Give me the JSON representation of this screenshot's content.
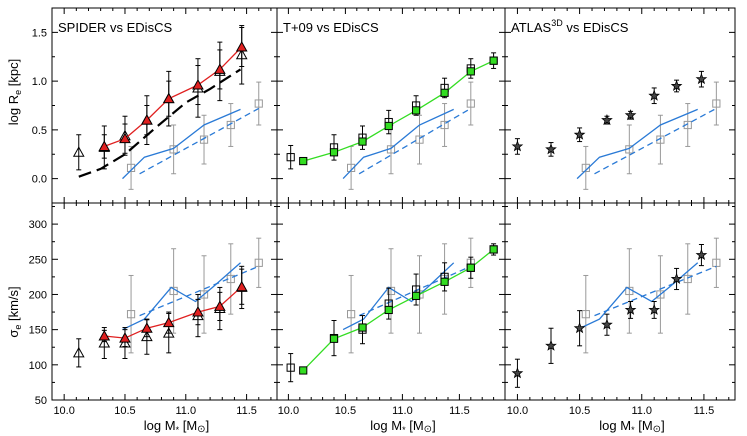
{
  "figure": {
    "ylabel_top_main": "log R",
    "ylabel_top_sub": "e",
    "ylabel_top_unit": " [kpc]",
    "ylabel_bottom_main": "σ",
    "ylabel_bottom_sub": "e",
    "ylabel_bottom_unit": " [km/s]",
    "xlabel_main": "log M",
    "xlabel_sub": "*",
    "xlabel_unit_open": " [M",
    "xlabel_unit_sym": "⊙",
    "xlabel_unit_close": "]"
  },
  "colors": {
    "spider": "#e02020",
    "t09": "#33dd22",
    "blue": "#2a7ad6",
    "grey": "#999999",
    "black": "#000000"
  },
  "chart_data": [
    {
      "type": "scatter",
      "title": "SPIDER vs EDisCS",
      "row": "top",
      "column": 0,
      "xlim": [
        9.9,
        11.75
      ],
      "ylim": [
        -0.25,
        1.75
      ],
      "xticks": [
        10.0,
        10.5,
        11.0,
        11.5
      ],
      "yticks": [
        0.0,
        0.5,
        1.0,
        1.5
      ],
      "series": [
        {
          "role": "comparison",
          "marker": "triangle",
          "color": "#e02020",
          "line": true,
          "x": [
            10.33,
            10.5,
            10.68,
            10.86,
            11.1,
            11.28,
            11.46
          ],
          "y": [
            0.33,
            0.41,
            0.6,
            0.82,
            0.96,
            1.12,
            1.35
          ],
          "err": [
            0.12,
            0.15,
            0.15,
            0.18,
            0.2,
            0.2,
            0.2
          ]
        },
        {
          "role": "local-sample",
          "marker": "open-triangle",
          "color": "#000000",
          "line": false,
          "x": [
            10.12,
            10.33,
            10.5,
            10.68,
            10.86,
            11.1,
            11.28,
            11.46
          ],
          "y": [
            0.27,
            0.32,
            0.44,
            0.6,
            0.82,
            0.93,
            1.1,
            1.27
          ],
          "err": [
            0.18,
            0.22,
            0.2,
            0.25,
            0.28,
            0.3,
            0.3,
            0.3
          ]
        },
        {
          "role": "local-fit",
          "style": "long-dash",
          "color": "#000000",
          "x": [
            10.12,
            10.3,
            10.5,
            10.75,
            11.0,
            11.2,
            11.45
          ],
          "y": [
            0.02,
            0.1,
            0.25,
            0.52,
            0.78,
            0.92,
            1.12
          ]
        },
        {
          "role": "edisc-points",
          "marker": "open-square",
          "color": "#999999",
          "x": [
            10.55,
            10.9,
            11.15,
            11.37,
            11.6
          ],
          "y": [
            0.11,
            0.3,
            0.4,
            0.55,
            0.77
          ],
          "err": [
            0.22,
            0.25,
            0.25,
            0.22,
            0.22
          ]
        },
        {
          "role": "edisc-running",
          "style": "solid",
          "color": "#2a7ad6",
          "x": [
            10.48,
            10.66,
            10.9,
            11.15,
            11.45
          ],
          "y": [
            0.0,
            0.22,
            0.31,
            0.55,
            0.71
          ]
        },
        {
          "role": "edisc-fit",
          "style": "dash",
          "color": "#2a7ad6",
          "x": [
            10.62,
            11.6
          ],
          "y": [
            0.05,
            0.72
          ]
        }
      ]
    },
    {
      "type": "scatter",
      "title": "T+09 vs EDisCS",
      "row": "top",
      "column": 1,
      "xlim": [
        9.9,
        11.9
      ],
      "ylim": [
        -0.25,
        1.75
      ],
      "xticks": [
        10.0,
        10.5,
        11.0,
        11.5
      ],
      "yticks": [
        0.0,
        0.5,
        1.0,
        1.5
      ],
      "series": [
        {
          "role": "comparison",
          "marker": "square",
          "color": "#33dd22",
          "line": true,
          "x": [
            10.13,
            10.4,
            10.65,
            10.88,
            11.12,
            11.37,
            11.6,
            11.8
          ],
          "y": [
            0.18,
            0.27,
            0.38,
            0.54,
            0.7,
            0.88,
            1.1,
            1.21
          ],
          "err": [
            0,
            0,
            0,
            0,
            0,
            0,
            0,
            0
          ]
        },
        {
          "role": "local-sample",
          "marker": "open-square",
          "color": "#000000",
          "line": false,
          "x": [
            10.02,
            10.4,
            10.65,
            10.88,
            11.12,
            11.37,
            11.6,
            11.8
          ],
          "y": [
            0.22,
            0.32,
            0.42,
            0.58,
            0.75,
            0.93,
            1.13,
            1.21
          ],
          "err": [
            0.12,
            0.13,
            0.12,
            0.12,
            0.1,
            0.1,
            0.1,
            0.08
          ]
        },
        {
          "role": "edisc-points",
          "marker": "open-square",
          "color": "#999999",
          "x": [
            10.55,
            10.9,
            11.15,
            11.37,
            11.6
          ],
          "y": [
            0.11,
            0.3,
            0.4,
            0.55,
            0.77
          ],
          "err": [
            0.22,
            0.25,
            0.25,
            0.22,
            0.22
          ]
        },
        {
          "role": "edisc-running",
          "style": "solid",
          "color": "#2a7ad6",
          "x": [
            10.48,
            10.66,
            10.9,
            11.15,
            11.45
          ],
          "y": [
            0.0,
            0.22,
            0.31,
            0.55,
            0.71
          ]
        },
        {
          "role": "edisc-fit",
          "style": "dash",
          "color": "#2a7ad6",
          "x": [
            10.62,
            11.6
          ],
          "y": [
            0.05,
            0.72
          ]
        }
      ]
    },
    {
      "type": "scatter",
      "title": "ATLAS",
      "title_superscript": "3D",
      "title_suffix": " vs EDisCS",
      "row": "top",
      "column": 2,
      "xlim": [
        9.9,
        11.75
      ],
      "ylim": [
        -0.25,
        1.75
      ],
      "xticks": [
        10.0,
        10.5,
        11.0,
        11.5
      ],
      "yticks": [
        0.0,
        0.5,
        1.0,
        1.5
      ],
      "series": [
        {
          "role": "local-sample",
          "marker": "star",
          "color": "#000000",
          "line": false,
          "x": [
            10.0,
            10.27,
            10.5,
            10.72,
            10.91,
            11.1,
            11.28,
            11.48
          ],
          "y": [
            0.33,
            0.3,
            0.45,
            0.6,
            0.65,
            0.85,
            0.95,
            1.02
          ],
          "err": [
            0.08,
            0.07,
            0.07,
            0.04,
            0.04,
            0.08,
            0.06,
            0.08
          ]
        },
        {
          "role": "edisc-points",
          "marker": "open-square",
          "color": "#999999",
          "x": [
            10.55,
            10.9,
            11.15,
            11.37,
            11.6
          ],
          "y": [
            0.11,
            0.3,
            0.4,
            0.55,
            0.77
          ],
          "err": [
            0.22,
            0.25,
            0.25,
            0.22,
            0.22
          ]
        },
        {
          "role": "edisc-running",
          "style": "solid",
          "color": "#2a7ad6",
          "x": [
            10.48,
            10.66,
            10.9,
            11.15,
            11.45
          ],
          "y": [
            0.0,
            0.22,
            0.31,
            0.55,
            0.71
          ]
        },
        {
          "role": "edisc-fit",
          "style": "dash",
          "color": "#2a7ad6",
          "x": [
            10.62,
            11.6
          ],
          "y": [
            0.05,
            0.72
          ]
        }
      ]
    },
    {
      "type": "scatter",
      "row": "bottom",
      "column": 0,
      "xlim": [
        9.9,
        11.75
      ],
      "ylim": [
        50,
        330
      ],
      "xticks": [
        10.0,
        10.5,
        11.0,
        11.5
      ],
      "xtick_labels": [
        "10.0",
        "10.5",
        "11.0",
        "11.5"
      ],
      "yticks": [
        50,
        100,
        150,
        200,
        250,
        300
      ],
      "series": [
        {
          "role": "comparison",
          "marker": "triangle",
          "color": "#e02020",
          "line": true,
          "x": [
            10.33,
            10.5,
            10.68,
            10.86,
            11.1,
            11.28,
            11.46
          ],
          "y": [
            141,
            138,
            152,
            160,
            175,
            183,
            211
          ],
          "err": [
            8,
            12,
            12,
            15,
            18,
            20,
            25
          ]
        },
        {
          "role": "local-sample",
          "marker": "open-triangle",
          "color": "#000000",
          "line": false,
          "x": [
            10.12,
            10.33,
            10.5,
            10.68,
            10.86,
            11.1,
            11.28,
            11.46
          ],
          "y": [
            117,
            131,
            131,
            140,
            145,
            170,
            180,
            210
          ],
          "err": [
            20,
            22,
            22,
            25,
            28,
            30,
            30,
            30
          ]
        },
        {
          "role": "edisc-points",
          "marker": "open-square",
          "color": "#999999",
          "x": [
            10.55,
            10.9,
            11.15,
            11.37,
            11.6
          ],
          "y": [
            172,
            205,
            200,
            222,
            245
          ],
          "err": [
            55,
            60,
            55,
            50,
            35
          ]
        },
        {
          "role": "edisc-running",
          "style": "solid",
          "color": "#2a7ad6",
          "x": [
            10.48,
            10.66,
            10.88,
            11.08,
            11.22,
            11.45
          ],
          "y": [
            150,
            165,
            210,
            190,
            210,
            245
          ]
        },
        {
          "role": "edisc-fit",
          "style": "dash",
          "color": "#2a7ad6",
          "x": [
            10.62,
            11.6
          ],
          "y": [
            170,
            240
          ]
        }
      ]
    },
    {
      "type": "scatter",
      "row": "bottom",
      "column": 1,
      "xlim": [
        9.9,
        11.9
      ],
      "ylim": [
        50,
        330
      ],
      "xticks": [
        10.0,
        10.5,
        11.0,
        11.5
      ],
      "xtick_labels": [
        "10.0",
        "10.5",
        "11.0",
        "11.5"
      ],
      "yticks": [
        50,
        100,
        150,
        200,
        250,
        300
      ],
      "series": [
        {
          "role": "comparison",
          "marker": "square",
          "color": "#33dd22",
          "line": true,
          "x": [
            10.13,
            10.4,
            10.65,
            10.88,
            11.12,
            11.37,
            11.6,
            11.8
          ],
          "y": [
            92,
            137,
            153,
            178,
            198,
            218,
            238,
            264
          ],
          "err": [
            0,
            0,
            0,
            0,
            0,
            0,
            0,
            0
          ]
        },
        {
          "role": "local-sample",
          "marker": "open-square",
          "color": "#000000",
          "line": false,
          "x": [
            10.02,
            10.4,
            10.65,
            10.88,
            11.12,
            11.37,
            11.6,
            11.8
          ],
          "y": [
            96,
            138,
            150,
            187,
            207,
            225,
            238,
            264
          ],
          "err": [
            20,
            25,
            20,
            22,
            22,
            20,
            15,
            8
          ]
        },
        {
          "role": "edisc-points",
          "marker": "open-square",
          "color": "#999999",
          "x": [
            10.55,
            10.9,
            11.15,
            11.37,
            11.6
          ],
          "y": [
            172,
            205,
            200,
            222,
            245
          ],
          "err": [
            55,
            60,
            55,
            50,
            35
          ]
        },
        {
          "role": "edisc-running",
          "style": "solid",
          "color": "#2a7ad6",
          "x": [
            10.48,
            10.66,
            10.88,
            11.08,
            11.22,
            11.45
          ],
          "y": [
            150,
            165,
            210,
            190,
            210,
            245
          ]
        },
        {
          "role": "edisc-fit",
          "style": "dash",
          "color": "#2a7ad6",
          "x": [
            10.62,
            11.6
          ],
          "y": [
            170,
            240
          ]
        }
      ]
    },
    {
      "type": "scatter",
      "row": "bottom",
      "column": 2,
      "xlim": [
        9.9,
        11.75
      ],
      "ylim": [
        50,
        330
      ],
      "xticks": [
        10.0,
        10.5,
        11.0,
        11.5
      ],
      "xtick_labels": [
        "10.0",
        "10.5",
        "11.0",
        "11.5"
      ],
      "yticks": [
        50,
        100,
        150,
        200,
        250,
        300
      ],
      "series": [
        {
          "role": "local-sample",
          "marker": "star",
          "color": "#000000",
          "line": false,
          "x": [
            10.0,
            10.27,
            10.5,
            10.72,
            10.91,
            11.1,
            11.28,
            11.48
          ],
          "y": [
            88,
            127,
            152,
            157,
            178,
            178,
            222,
            256
          ],
          "err": [
            20,
            25,
            25,
            15,
            12,
            12,
            15,
            15
          ]
        },
        {
          "role": "edisc-points",
          "marker": "open-square",
          "color": "#999999",
          "x": [
            10.55,
            10.9,
            11.15,
            11.37,
            11.6
          ],
          "y": [
            172,
            205,
            200,
            222,
            245
          ],
          "err": [
            55,
            60,
            55,
            50,
            35
          ]
        },
        {
          "role": "edisc-running",
          "style": "solid",
          "color": "#2a7ad6",
          "x": [
            10.48,
            10.66,
            10.88,
            11.08,
            11.22,
            11.45
          ],
          "y": [
            150,
            165,
            210,
            190,
            210,
            245
          ]
        },
        {
          "role": "edisc-fit",
          "style": "dash",
          "color": "#2a7ad6",
          "x": [
            10.62,
            11.6
          ],
          "y": [
            170,
            240
          ]
        }
      ]
    }
  ]
}
